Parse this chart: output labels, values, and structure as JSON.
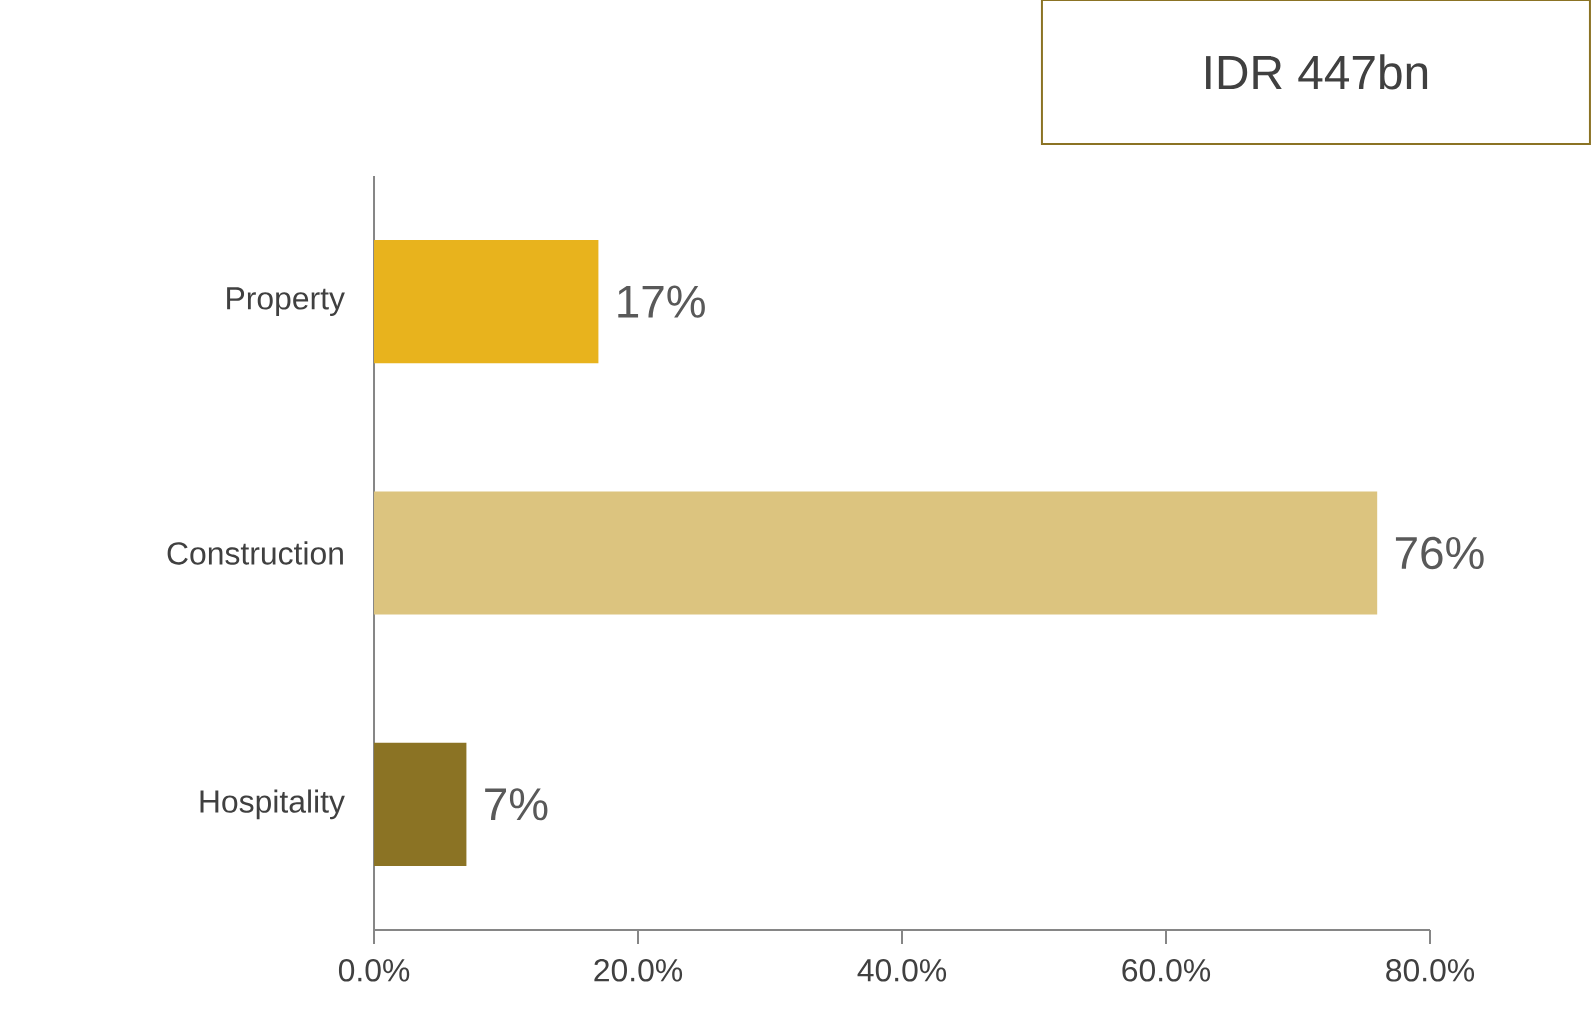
{
  "chart_data": {
    "type": "bar",
    "orientation": "horizontal",
    "categories": [
      "Property",
      "Construction",
      "Hospitality"
    ],
    "values": [
      17,
      76,
      7
    ],
    "colors": [
      "#e8b31d",
      "#dcc47f",
      "#8b7324"
    ],
    "value_labels": [
      "17%",
      "76%",
      "7%"
    ],
    "xlim": [
      0,
      80
    ],
    "xticks": [
      {
        "value": 0,
        "label": "0.0%"
      },
      {
        "value": 20,
        "label": "20.0%"
      },
      {
        "value": 40,
        "label": "40.0%"
      },
      {
        "value": 60,
        "label": "60.0%"
      },
      {
        "value": 80,
        "label": "80.0%"
      }
    ],
    "annotations": [
      "IDR 447bn"
    ],
    "grid": false
  }
}
